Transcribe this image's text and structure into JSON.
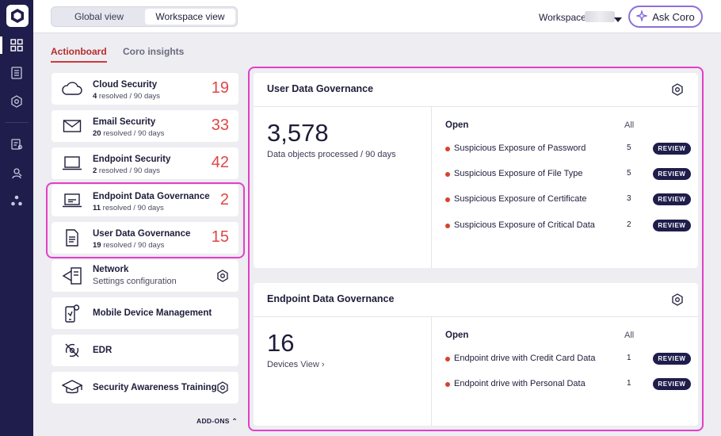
{
  "topbar": {
    "view_toggle": {
      "global": "Global view",
      "workspace": "Workspace view",
      "selected": "Workspace view"
    },
    "workspace_label": "Workspace:",
    "ask_button": "Ask Coro"
  },
  "tabs": [
    {
      "label": "Actionboard",
      "active": true
    },
    {
      "label": "Coro insights",
      "active": false
    }
  ],
  "modules": [
    {
      "title": "Cloud Security",
      "resolved": "4",
      "period": " resolved / 90 days",
      "count": "19",
      "icon": "cloud-icon"
    },
    {
      "title": "Email Security",
      "resolved": "20",
      "period": " resolved / 90 days",
      "count": "33",
      "icon": "envelope-icon"
    },
    {
      "title": "Endpoint Security",
      "resolved": "2",
      "period": " resolved / 90 days",
      "count": "42",
      "icon": "laptop-icon"
    },
    {
      "title": "Endpoint Data Governance",
      "resolved": "11",
      "period": " resolved / 90 days",
      "count": "2",
      "icon": "laptop-data-icon"
    },
    {
      "title": "User Data Governance",
      "resolved": "19",
      "period": " resolved / 90 days",
      "count": "15",
      "icon": "document-icon"
    }
  ],
  "addon_modules": [
    {
      "title": "Network",
      "subtitle": "Settings configuration",
      "icon": "network-icon"
    },
    {
      "title": "Mobile Device Management",
      "icon": "mobile-device-icon"
    },
    {
      "title": "EDR",
      "icon": "edr-icon"
    },
    {
      "title": "Security Awareness Training",
      "icon": "graduation-cap-icon"
    }
  ],
  "addons_label": "ADD-ONS",
  "panels": {
    "user_data": {
      "title": "User Data Governance",
      "metric": "3,578",
      "metric_label": "Data objects processed / 90 days",
      "open_label": "Open",
      "all_label": "All",
      "rows": [
        {
          "label": "Suspicious Exposure of Password",
          "count": "5",
          "action": "REVIEW"
        },
        {
          "label": "Suspicious Exposure of File Type",
          "count": "5",
          "action": "REVIEW"
        },
        {
          "label": "Suspicious Exposure of Certificate",
          "count": "3",
          "action": "REVIEW"
        },
        {
          "label": "Suspicious Exposure of Critical Data",
          "count": "2",
          "action": "REVIEW"
        }
      ]
    },
    "endpoint_data": {
      "title": "Endpoint Data Governance",
      "metric": "16",
      "metric_label": "Devices",
      "metric_link": "View ›",
      "open_label": "Open",
      "all_label": "All",
      "rows": [
        {
          "label": "Endpoint drive with Credit Card Data",
          "count": "1",
          "action": "REVIEW"
        },
        {
          "label": "Endpoint drive with Personal Data",
          "count": "1",
          "action": "REVIEW"
        }
      ]
    }
  },
  "colors": {
    "rail": "#1e1d4b",
    "accent_red": "#e04646",
    "highlight": "#e33fc6",
    "ask_border": "#8e6fd6"
  }
}
